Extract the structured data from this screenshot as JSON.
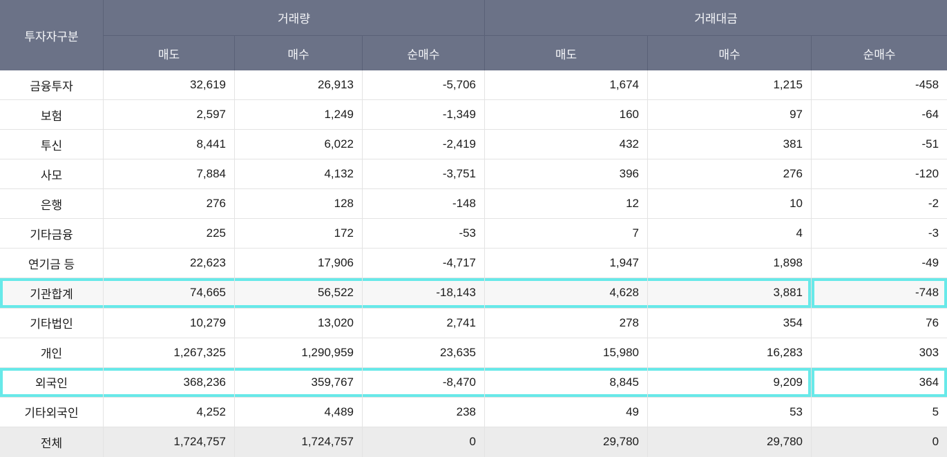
{
  "colors": {
    "header_bg": "#6b7287",
    "header_border": "#5a6177",
    "grid_line": "#e3e3e3",
    "highlight_accent": "#68e9e9",
    "shade_light": "#f7f7f7",
    "shade_dark": "#ececec"
  },
  "table": {
    "header": {
      "investor_col": "투자자구분",
      "groups": [
        {
          "label": "거래량",
          "subcols": [
            "매도",
            "매수",
            "순매수"
          ]
        },
        {
          "label": "거래대금",
          "subcols": [
            "매도",
            "매수",
            "순매수"
          ]
        }
      ]
    },
    "rows": [
      {
        "label": "금융투자",
        "values": [
          "32,619",
          "26,913",
          "-5,706",
          "1,674",
          "1,215",
          "-458"
        ],
        "highlight": false,
        "shade": "none"
      },
      {
        "label": "보험",
        "values": [
          "2,597",
          "1,249",
          "-1,349",
          "160",
          "97",
          "-64"
        ],
        "highlight": false,
        "shade": "none"
      },
      {
        "label": "투신",
        "values": [
          "8,441",
          "6,022",
          "-2,419",
          "432",
          "381",
          "-51"
        ],
        "highlight": false,
        "shade": "none"
      },
      {
        "label": "사모",
        "values": [
          "7,884",
          "4,132",
          "-3,751",
          "396",
          "276",
          "-120"
        ],
        "highlight": false,
        "shade": "none"
      },
      {
        "label": "은행",
        "values": [
          "276",
          "128",
          "-148",
          "12",
          "10",
          "-2"
        ],
        "highlight": false,
        "shade": "none"
      },
      {
        "label": "기타금융",
        "values": [
          "225",
          "172",
          "-53",
          "7",
          "4",
          "-3"
        ],
        "highlight": false,
        "shade": "none"
      },
      {
        "label": "연기금 등",
        "values": [
          "22,623",
          "17,906",
          "-4,717",
          "1,947",
          "1,898",
          "-49"
        ],
        "highlight": false,
        "shade": "none"
      },
      {
        "label": "기관합계",
        "values": [
          "74,665",
          "56,522",
          "-18,143",
          "4,628",
          "3,881",
          "-748"
        ],
        "highlight": true,
        "shade": "light"
      },
      {
        "label": "기타법인",
        "values": [
          "10,279",
          "13,020",
          "2,741",
          "278",
          "354",
          "76"
        ],
        "highlight": false,
        "shade": "none"
      },
      {
        "label": "개인",
        "values": [
          "1,267,325",
          "1,290,959",
          "23,635",
          "15,980",
          "16,283",
          "303"
        ],
        "highlight": false,
        "shade": "none"
      },
      {
        "label": "외국인",
        "values": [
          "368,236",
          "359,767",
          "-8,470",
          "8,845",
          "9,209",
          "364"
        ],
        "highlight": true,
        "shade": "none"
      },
      {
        "label": "기타외국인",
        "values": [
          "4,252",
          "4,489",
          "238",
          "49",
          "53",
          "5"
        ],
        "highlight": false,
        "shade": "none"
      },
      {
        "label": "전체",
        "values": [
          "1,724,757",
          "1,724,757",
          "0",
          "29,780",
          "29,780",
          "0"
        ],
        "highlight": false,
        "shade": "dark"
      }
    ]
  }
}
